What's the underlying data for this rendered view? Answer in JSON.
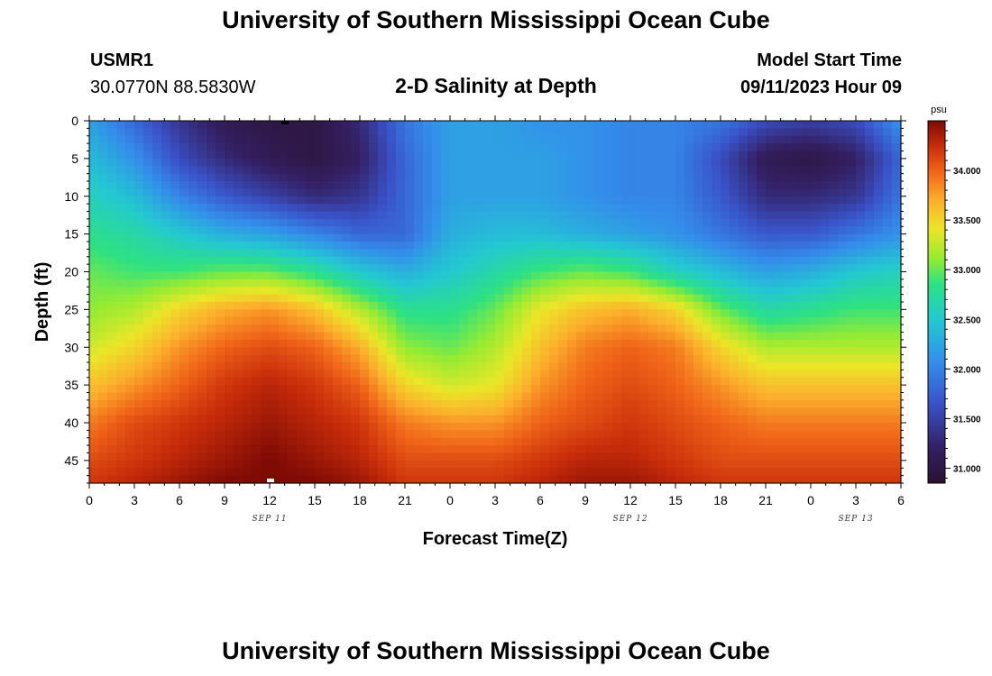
{
  "header": {
    "title": "University of Southern Mississippi Ocean Cube",
    "station_id": "USMR1",
    "station_coords": "30.0770N  88.5830W",
    "subtitle": "2-D Salinity at Depth",
    "start_label": "Model Start Time",
    "start_value": "09/11/2023 Hour 09"
  },
  "footer": {
    "title": "University of Southern Mississippi Ocean Cube"
  },
  "chart_data": {
    "type": "heatmap",
    "title": "2-D Salinity at Depth",
    "xlabel": "Forecast Time(Z)",
    "ylabel": "Depth (ft)",
    "x_tick_labels": [
      "0",
      "3",
      "6",
      "9",
      "12",
      "15",
      "18",
      "21",
      "0",
      "3",
      "6",
      "9",
      "12",
      "15",
      "18",
      "21",
      "0",
      "3",
      "6"
    ],
    "x_date_labels": [
      {
        "text": "SEP 11",
        "tick_index": 4
      },
      {
        "text": "SEP 12",
        "tick_index": 12
      },
      {
        "text": "SEP 13",
        "tick_index": 17
      }
    ],
    "y_tick_labels": [
      "0",
      "5",
      "10",
      "15",
      "20",
      "25",
      "30",
      "35",
      "40",
      "45"
    ],
    "x_range_hours": [
      0,
      54
    ],
    "y_range_ft": [
      0,
      48
    ],
    "colorbar": {
      "unit": "psu",
      "range": [
        30.85,
        34.5
      ],
      "tick_labels": [
        "31.000",
        "31.500",
        "32.000",
        "32.500",
        "33.000",
        "33.500",
        "34.000"
      ],
      "tick_values": [
        31.0,
        31.5,
        32.0,
        32.5,
        33.0,
        33.5,
        34.0
      ]
    },
    "depths_ft": [
      0,
      5,
      10,
      15,
      20,
      25,
      30,
      35,
      40,
      45,
      48
    ],
    "hours": [
      0,
      3,
      6,
      9,
      12,
      15,
      18,
      21,
      24,
      27,
      30,
      33,
      36,
      39,
      42,
      45,
      48,
      51,
      54
    ],
    "values": [
      [
        32.2,
        31.8,
        31.4,
        31.1,
        31.0,
        31.0,
        31.3,
        31.9,
        32.2,
        32.2,
        32.1,
        32.1,
        32.0,
        32.0,
        31.9,
        31.6,
        31.5,
        31.6,
        32.1
      ],
      [
        32.4,
        32.1,
        31.6,
        31.3,
        31.1,
        31.0,
        31.2,
        31.8,
        32.2,
        32.2,
        32.2,
        32.1,
        32.0,
        32.0,
        31.6,
        31.1,
        31.0,
        31.2,
        31.8
      ],
      [
        32.6,
        32.4,
        32.0,
        31.7,
        31.5,
        31.3,
        31.4,
        31.8,
        32.2,
        32.2,
        32.2,
        32.1,
        32.0,
        32.0,
        31.7,
        31.3,
        31.3,
        31.4,
        31.9
      ],
      [
        32.8,
        32.7,
        32.5,
        32.3,
        32.2,
        32.0,
        31.8,
        31.8,
        32.3,
        32.4,
        32.4,
        32.3,
        32.2,
        32.1,
        31.9,
        31.7,
        31.7,
        31.9,
        32.1
      ],
      [
        33.0,
        32.9,
        32.9,
        33.0,
        33.0,
        32.8,
        32.5,
        32.3,
        32.5,
        32.7,
        32.9,
        33.0,
        32.9,
        32.6,
        32.4,
        32.2,
        32.3,
        32.5,
        32.6
      ],
      [
        33.1,
        33.2,
        33.5,
        33.7,
        33.8,
        33.6,
        33.2,
        32.8,
        32.8,
        33.0,
        33.4,
        33.6,
        33.7,
        33.5,
        33.0,
        32.7,
        32.8,
        32.9,
        32.9
      ],
      [
        33.3,
        33.5,
        33.8,
        34.0,
        34.1,
        34.0,
        33.7,
        33.1,
        33.0,
        33.2,
        33.6,
        33.9,
        34.0,
        33.9,
        33.5,
        33.2,
        33.2,
        33.2,
        33.2
      ],
      [
        33.6,
        33.8,
        34.0,
        34.2,
        34.3,
        34.2,
        34.0,
        33.5,
        33.3,
        33.4,
        33.8,
        34.0,
        34.1,
        34.0,
        33.8,
        33.6,
        33.6,
        33.6,
        33.6
      ],
      [
        33.9,
        34.1,
        34.2,
        34.3,
        34.4,
        34.3,
        34.2,
        33.9,
        33.8,
        33.8,
        34.0,
        34.1,
        34.2,
        34.1,
        34.0,
        33.9,
        33.9,
        33.9,
        33.9
      ],
      [
        34.1,
        34.2,
        34.3,
        34.4,
        34.5,
        34.4,
        34.3,
        34.1,
        34.1,
        34.1,
        34.2,
        34.3,
        34.3,
        34.2,
        34.1,
        34.1,
        34.1,
        34.1,
        34.1
      ],
      [
        34.2,
        34.3,
        34.4,
        34.5,
        34.5,
        34.5,
        34.4,
        34.2,
        34.2,
        34.2,
        34.3,
        34.4,
        34.4,
        34.3,
        34.2,
        34.2,
        34.2,
        34.2,
        34.2
      ]
    ]
  }
}
